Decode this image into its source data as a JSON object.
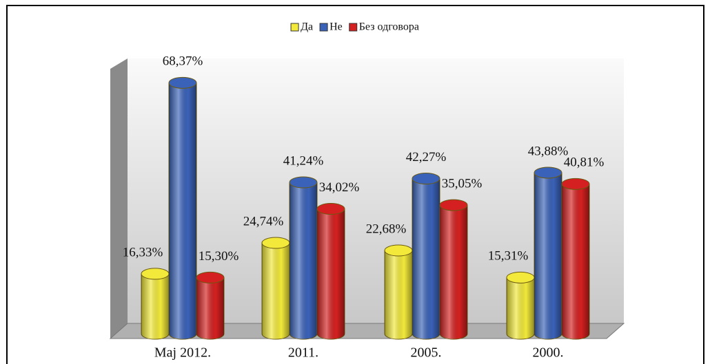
{
  "chart_data": {
    "type": "bar3d",
    "categories": [
      "Maj 2012.",
      "2011.",
      "2005.",
      "2000."
    ],
    "series": [
      {
        "name": "Да",
        "color": "#f2e93a",
        "values": [
          16.33,
          24.74,
          22.68,
          15.31
        ],
        "value_labels": [
          "16,33%",
          "24,74%",
          "22,68%",
          "15,31%"
        ]
      },
      {
        "name": "Не",
        "color": "#3a62b8",
        "values": [
          68.37,
          41.24,
          42.27,
          43.88
        ],
        "value_labels": [
          "68,37%",
          "41,24%",
          "42,27%",
          "43,88%"
        ]
      },
      {
        "name": "Без одговора",
        "color": "#d42020",
        "values": [
          15.3,
          34.02,
          35.05,
          40.81
        ],
        "value_labels": [
          "15,30%",
          "34,02%",
          "35,05%",
          "40,81%"
        ]
      }
    ],
    "ylim": [
      0,
      75
    ],
    "legend": "top"
  }
}
